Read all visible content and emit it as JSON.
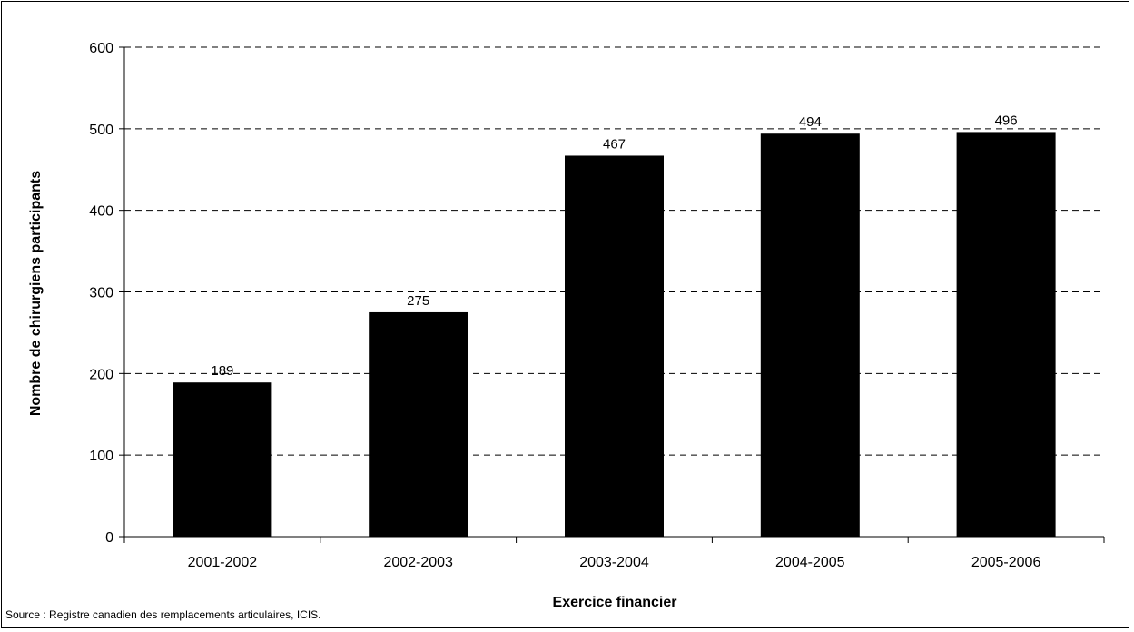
{
  "chart_data": {
    "type": "bar",
    "title": "",
    "xlabel": "Exercice financier",
    "ylabel": "Nombre de chirurgiens participants",
    "categories": [
      "2001-2002",
      "2002-2003",
      "2003-2004",
      "2004-2005",
      "2005-2006"
    ],
    "values": [
      189,
      275,
      467,
      494,
      496
    ],
    "data_labels": [
      "189",
      "275",
      "467",
      "494",
      "496"
    ],
    "ylim": [
      0,
      600
    ],
    "yticks": [
      0,
      100,
      200,
      300,
      400,
      500,
      600
    ],
    "ytick_labels": [
      "0",
      "100",
      "200",
      "300",
      "400",
      "500",
      "600"
    ],
    "grid": "horizontal dashed",
    "legend": "none",
    "bar_color": "#000000"
  },
  "source": "Source : Registre canadien des remplacements articulaires, ICIS."
}
